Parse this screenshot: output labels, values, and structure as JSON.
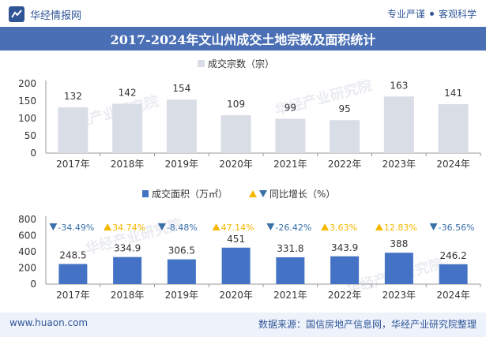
{
  "header": {
    "brand": "华经情报网",
    "tagline_left": "专业严谨",
    "tagline_right": "客观科学",
    "title": "2017-2024年文山州成交土地宗数及面积统计"
  },
  "footer": {
    "website": "www.huaon.com",
    "source": "数据来源：国信房地产信息网，华经产业研究院整理"
  },
  "watermark": "华经产业研究院",
  "colors": {
    "bar": "#d9dde6",
    "area_bar": "#4472c4",
    "title_bg": "#4a6fb5",
    "up": "#f5b800",
    "down": "#3a6fa8"
  },
  "chart_data": [
    {
      "type": "bar",
      "legend": "成交宗数（宗）",
      "categories": [
        "2017年",
        "2018年",
        "2019年",
        "2020年",
        "2021年",
        "2022年",
        "2023年",
        "2024年"
      ],
      "values": [
        132,
        142,
        154,
        109,
        99,
        95,
        163,
        141
      ],
      "ylim": [
        0,
        200
      ],
      "yticks": [
        "0",
        "50",
        "100",
        "150",
        "200"
      ]
    },
    {
      "type": "bar",
      "legend_area": "成交面积（万㎡）",
      "legend_growth": "同比增长（%）",
      "categories": [
        "2017年",
        "2018年",
        "2019年",
        "2020年",
        "2021年",
        "2022年",
        "2023年",
        "2024年"
      ],
      "values": [
        248.5,
        334.9,
        306.5,
        451,
        331.8,
        343.9,
        388,
        246.2
      ],
      "growth": [
        "-34.49%",
        "34.74%",
        "-8.48%",
        "47.14%",
        "-26.42%",
        "3.63%",
        "12.83%",
        "-36.56%"
      ],
      "growth_dir": [
        "down",
        "up",
        "down",
        "up",
        "down",
        "up",
        "up",
        "down"
      ],
      "ylim": [
        0,
        800
      ],
      "yticks": [
        "0",
        "200",
        "400",
        "600",
        "800"
      ]
    }
  ]
}
